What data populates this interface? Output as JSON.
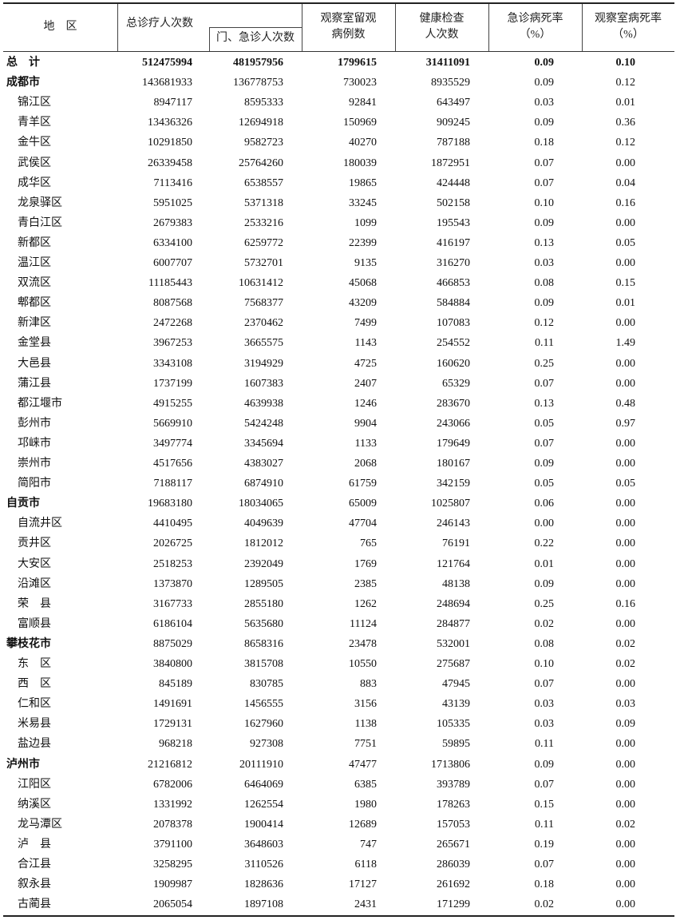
{
  "header": {
    "region": "地　区",
    "total_visits": "总诊疗人次数",
    "outpatient_emergency": "门、急诊人次数",
    "observation_cases_l1": "观察室留观",
    "observation_cases_l2": "病例数",
    "health_check_l1": "健康检查",
    "health_check_l2": "人次数",
    "emergency_mortality_l1": "急诊病死率",
    "emergency_mortality_l2": "（%）",
    "observation_mortality_l1": "观察室病死率",
    "observation_mortality_l2": "（%）"
  },
  "rows": [
    {
      "name": "总　计",
      "level": "total",
      "values": [
        "512475994",
        "481957956",
        "1799615",
        "31411091",
        "0.09",
        "0.10"
      ]
    },
    {
      "name": "成都市",
      "level": "city",
      "values": [
        "143681933",
        "136778753",
        "730023",
        "8935529",
        "0.09",
        "0.12"
      ]
    },
    {
      "name": "锦江区",
      "level": "district",
      "values": [
        "8947117",
        "8595333",
        "92841",
        "643497",
        "0.03",
        "0.01"
      ]
    },
    {
      "name": "青羊区",
      "level": "district",
      "values": [
        "13436326",
        "12694918",
        "150969",
        "909245",
        "0.09",
        "0.36"
      ]
    },
    {
      "name": "金牛区",
      "level": "district",
      "values": [
        "10291850",
        "9582723",
        "40270",
        "787188",
        "0.18",
        "0.12"
      ]
    },
    {
      "name": "武侯区",
      "level": "district",
      "values": [
        "26339458",
        "25764260",
        "180039",
        "1872951",
        "0.07",
        "0.00"
      ]
    },
    {
      "name": "成华区",
      "level": "district",
      "values": [
        "7113416",
        "6538557",
        "19865",
        "424448",
        "0.07",
        "0.04"
      ]
    },
    {
      "name": "龙泉驿区",
      "level": "district",
      "values": [
        "5951025",
        "5371318",
        "33245",
        "502158",
        "0.10",
        "0.16"
      ]
    },
    {
      "name": "青白江区",
      "level": "district",
      "values": [
        "2679383",
        "2533216",
        "1099",
        "195543",
        "0.09",
        "0.00"
      ]
    },
    {
      "name": "新都区",
      "level": "district",
      "values": [
        "6334100",
        "6259772",
        "22399",
        "416197",
        "0.13",
        "0.05"
      ]
    },
    {
      "name": "温江区",
      "level": "district",
      "values": [
        "6007707",
        "5732701",
        "9135",
        "316270",
        "0.03",
        "0.00"
      ]
    },
    {
      "name": "双流区",
      "level": "district",
      "values": [
        "11185443",
        "10631412",
        "45068",
        "466853",
        "0.08",
        "0.15"
      ]
    },
    {
      "name": "郫都区",
      "level": "district",
      "values": [
        "8087568",
        "7568377",
        "43209",
        "584884",
        "0.09",
        "0.01"
      ]
    },
    {
      "name": "新津区",
      "level": "district",
      "values": [
        "2472268",
        "2370462",
        "7499",
        "107083",
        "0.12",
        "0.00"
      ]
    },
    {
      "name": "金堂县",
      "level": "district",
      "values": [
        "3967253",
        "3665575",
        "1143",
        "254552",
        "0.11",
        "1.49"
      ]
    },
    {
      "name": "大邑县",
      "level": "district",
      "values": [
        "3343108",
        "3194929",
        "4725",
        "160620",
        "0.25",
        "0.00"
      ]
    },
    {
      "name": "蒲江县",
      "level": "district",
      "values": [
        "1737199",
        "1607383",
        "2407",
        "65329",
        "0.07",
        "0.00"
      ]
    },
    {
      "name": "都江堰市",
      "level": "district",
      "values": [
        "4915255",
        "4639938",
        "1246",
        "283670",
        "0.13",
        "0.48"
      ]
    },
    {
      "name": "彭州市",
      "level": "district",
      "values": [
        "5669910",
        "5424248",
        "9904",
        "243066",
        "0.05",
        "0.97"
      ]
    },
    {
      "name": "邛崃市",
      "level": "district",
      "values": [
        "3497774",
        "3345694",
        "1133",
        "179649",
        "0.07",
        "0.00"
      ]
    },
    {
      "name": "崇州市",
      "level": "district",
      "values": [
        "4517656",
        "4383027",
        "2068",
        "180167",
        "0.09",
        "0.00"
      ]
    },
    {
      "name": "简阳市",
      "level": "district",
      "values": [
        "7188117",
        "6874910",
        "61759",
        "342159",
        "0.05",
        "0.05"
      ]
    },
    {
      "name": "自贡市",
      "level": "city",
      "values": [
        "19683180",
        "18034065",
        "65009",
        "1025807",
        "0.06",
        "0.00"
      ]
    },
    {
      "name": "自流井区",
      "level": "district",
      "values": [
        "4410495",
        "4049639",
        "47704",
        "246143",
        "0.00",
        "0.00"
      ]
    },
    {
      "name": "贡井区",
      "level": "district",
      "values": [
        "2026725",
        "1812012",
        "765",
        "76191",
        "0.22",
        "0.00"
      ]
    },
    {
      "name": "大安区",
      "level": "district",
      "values": [
        "2518253",
        "2392049",
        "1769",
        "121764",
        "0.01",
        "0.00"
      ]
    },
    {
      "name": "沿滩区",
      "level": "district",
      "values": [
        "1373870",
        "1289505",
        "2385",
        "48138",
        "0.09",
        "0.00"
      ]
    },
    {
      "name": "荣　县",
      "level": "district",
      "values": [
        "3167733",
        "2855180",
        "1262",
        "248694",
        "0.25",
        "0.16"
      ]
    },
    {
      "name": "富顺县",
      "level": "district",
      "values": [
        "6186104",
        "5635680",
        "11124",
        "284877",
        "0.02",
        "0.00"
      ]
    },
    {
      "name": "攀枝花市",
      "level": "city",
      "values": [
        "8875029",
        "8658316",
        "23478",
        "532001",
        "0.08",
        "0.02"
      ]
    },
    {
      "name": "东　区",
      "level": "district",
      "values": [
        "3840800",
        "3815708",
        "10550",
        "275687",
        "0.10",
        "0.02"
      ]
    },
    {
      "name": "西　区",
      "level": "district",
      "values": [
        "845189",
        "830785",
        "883",
        "47945",
        "0.07",
        "0.00"
      ]
    },
    {
      "name": "仁和区",
      "level": "district",
      "values": [
        "1491691",
        "1456555",
        "3156",
        "43139",
        "0.03",
        "0.03"
      ]
    },
    {
      "name": "米易县",
      "level": "district",
      "values": [
        "1729131",
        "1627960",
        "1138",
        "105335",
        "0.03",
        "0.09"
      ]
    },
    {
      "name": "盐边县",
      "level": "district",
      "values": [
        "968218",
        "927308",
        "7751",
        "59895",
        "0.11",
        "0.00"
      ]
    },
    {
      "name": "泸州市",
      "level": "city",
      "values": [
        "21216812",
        "20111910",
        "47477",
        "1713806",
        "0.09",
        "0.00"
      ]
    },
    {
      "name": "江阳区",
      "level": "district",
      "values": [
        "6782006",
        "6464069",
        "6385",
        "393789",
        "0.07",
        "0.00"
      ]
    },
    {
      "name": "纳溪区",
      "level": "district",
      "values": [
        "1331992",
        "1262554",
        "1980",
        "178263",
        "0.15",
        "0.00"
      ]
    },
    {
      "name": "龙马潭区",
      "level": "district",
      "values": [
        "2078378",
        "1900414",
        "12689",
        "157053",
        "0.11",
        "0.02"
      ]
    },
    {
      "name": "泸　县",
      "level": "district",
      "values": [
        "3791100",
        "3648603",
        "747",
        "265671",
        "0.19",
        "0.00"
      ]
    },
    {
      "name": "合江县",
      "level": "district",
      "values": [
        "3258295",
        "3110526",
        "6118",
        "286039",
        "0.07",
        "0.00"
      ]
    },
    {
      "name": "叙永县",
      "level": "district",
      "values": [
        "1909987",
        "1828636",
        "17127",
        "261692",
        "0.18",
        "0.00"
      ]
    },
    {
      "name": "古蔺县",
      "level": "district",
      "values": [
        "2065054",
        "1897108",
        "2431",
        "171299",
        "0.02",
        "0.00"
      ]
    }
  ]
}
